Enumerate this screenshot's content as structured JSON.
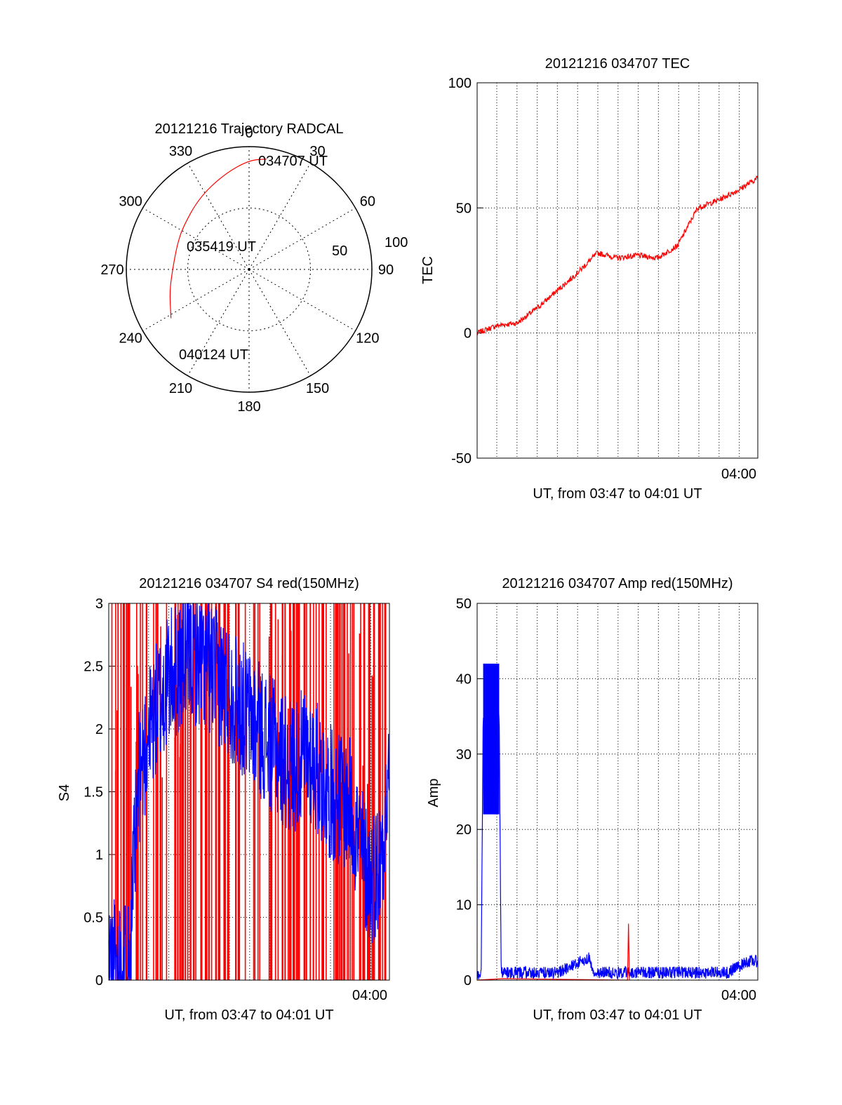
{
  "chart_data": [
    {
      "type": "polar",
      "title": "20121216 Trajectory RADCAL",
      "azimuth_labels": [
        "0",
        "30",
        "60",
        "90",
        "120",
        "150",
        "180",
        "210",
        "240",
        "270",
        "300",
        "330"
      ],
      "radial_labels": [
        "50",
        "100"
      ],
      "radial_range": [
        0,
        100
      ],
      "grid": true,
      "trajectory": {
        "color": "#ff0000",
        "points": [
          {
            "az": 9,
            "r": 91
          },
          {
            "az": 0,
            "r": 89
          },
          {
            "az": 345,
            "r": 80
          },
          {
            "az": 325,
            "r": 71
          },
          {
            "az": 303,
            "r": 64
          },
          {
            "az": 290,
            "r": 62
          },
          {
            "az": 272,
            "r": 62
          },
          {
            "az": 255,
            "r": 67
          },
          {
            "az": 238,
            "r": 75
          }
        ]
      },
      "annotations": [
        "034707 UT",
        "035419 UT",
        "040124 UT"
      ]
    },
    {
      "type": "line",
      "title": "20121216 034707 TEC",
      "ylabel": "TEC",
      "xlabel": "UT, from 03:47 to 04:01 UT",
      "ylim": [
        -50,
        100
      ],
      "yticks": [
        "-50",
        "0",
        "50",
        "100"
      ],
      "xtick_label": "04:00",
      "grid": true,
      "series": [
        {
          "color": "#ff0000",
          "x": [
            0,
            1,
            2,
            3,
            4,
            5,
            6,
            7,
            8,
            9,
            10,
            11,
            12,
            13,
            14
          ],
          "y": [
            0,
            3,
            4,
            10,
            17,
            24,
            32,
            30,
            31,
            30,
            35,
            50,
            53,
            57,
            62
          ]
        }
      ]
    },
    {
      "type": "line",
      "title": "20121216 034707 S4 red(150MHz)",
      "ylabel": "S4",
      "xlabel": "UT, from 03:47 to 04:01 UT",
      "ylim": [
        0,
        3
      ],
      "yticks": [
        "0",
        "0.5",
        "1",
        "1.5",
        "2",
        "2.5",
        "3"
      ],
      "xtick_label": "04:00",
      "grid": true,
      "series": [
        {
          "color": "#ff0000",
          "note": "dense vertical spikes 0–3"
        },
        {
          "color": "#0000ff",
          "x": [
            0,
            0.5,
            1,
            1.5,
            2,
            3,
            4,
            5,
            6,
            7,
            8,
            9,
            10,
            11,
            12,
            13,
            13.5,
            14
          ],
          "y": [
            0.15,
            0.15,
            0.15,
            1.6,
            2.0,
            2.4,
            2.6,
            2.5,
            2.3,
            2.1,
            1.9,
            1.7,
            1.8,
            1.5,
            1.4,
            0.8,
            0.9,
            1.6
          ]
        }
      ]
    },
    {
      "type": "line",
      "title": "20121216 034707 Amp red(150MHz)",
      "ylabel": "Amp",
      "xlabel": "UT, from 03:47 to 04:01 UT",
      "ylim": [
        0,
        50
      ],
      "yticks": [
        "0",
        "10",
        "20",
        "30",
        "40",
        "50"
      ],
      "xtick_label": "04:00",
      "grid": true,
      "series": [
        {
          "color": "#0000ff",
          "x": [
            0,
            0.2,
            0.3,
            1.1,
            1.2,
            2,
            4,
            5.6,
            5.8,
            7,
            10,
            12.5,
            13.5,
            14
          ],
          "y": [
            0.5,
            1,
            35,
            35,
            1,
            1,
            1,
            3,
            1,
            1,
            1,
            1,
            2.5,
            2.5
          ]
        },
        {
          "color": "#ff0000",
          "x": [
            0,
            1.3,
            7.5,
            7.55,
            7.6
          ],
          "y": [
            0,
            0.2,
            0,
            7.5,
            0
          ]
        }
      ]
    }
  ]
}
